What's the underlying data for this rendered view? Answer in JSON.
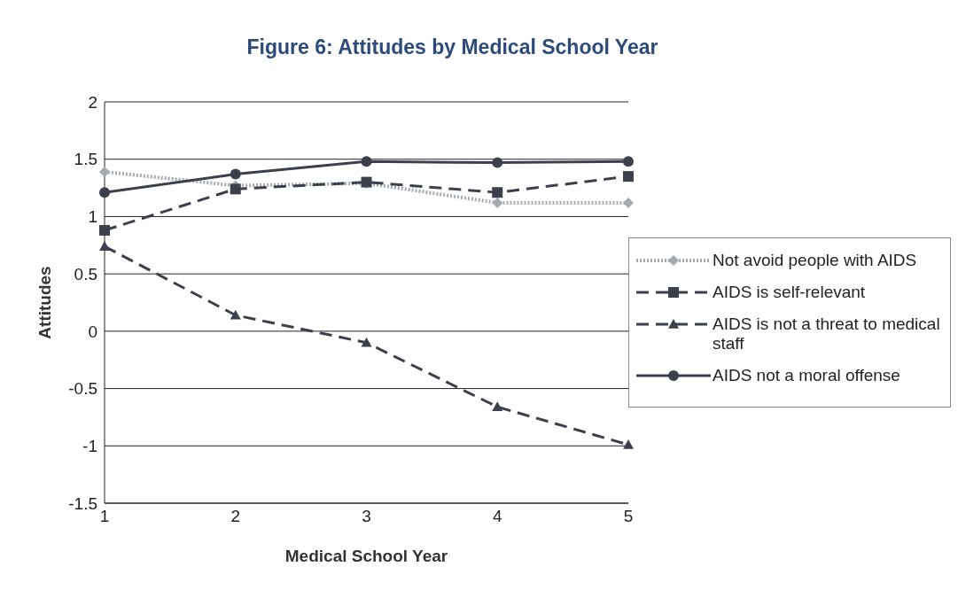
{
  "chart_data": {
    "type": "line",
    "title": "Figure 6: Attitudes by Medical School Year",
    "xlabel": "Medical School Year",
    "ylabel": "Attitudes",
    "categories": [
      "1",
      "2",
      "3",
      "4",
      "5"
    ],
    "series": [
      {
        "name": "Not avoid  people with AIDS",
        "color": "#a3aab2",
        "values": [
          1.39,
          1.27,
          1.29,
          1.12,
          1.12
        ],
        "marker": "diamond",
        "line_style": "dotted"
      },
      {
        "name": "AIDS is self-relevant",
        "color": "#3b404a",
        "values": [
          0.88,
          1.24,
          1.3,
          1.21,
          1.35
        ],
        "marker": "square",
        "line_style": "dashed"
      },
      {
        "name": "AIDS is not a threat to medical staff",
        "color": "#3b404a",
        "values": [
          0.74,
          0.14,
          -0.1,
          -0.66,
          -0.99
        ],
        "marker": "triangle",
        "line_style": "dashed"
      },
      {
        "name": "AIDS not a moral offense",
        "color": "#3b404a",
        "values": [
          1.21,
          1.37,
          1.48,
          1.47,
          1.48
        ],
        "marker": "circle",
        "line_style": "solid"
      }
    ],
    "ylim": [
      -1.5,
      2
    ],
    "yticks": [
      -1.5,
      -1,
      -0.5,
      0,
      0.5,
      1,
      1.5,
      2
    ],
    "grid": "y",
    "legend": "right"
  }
}
